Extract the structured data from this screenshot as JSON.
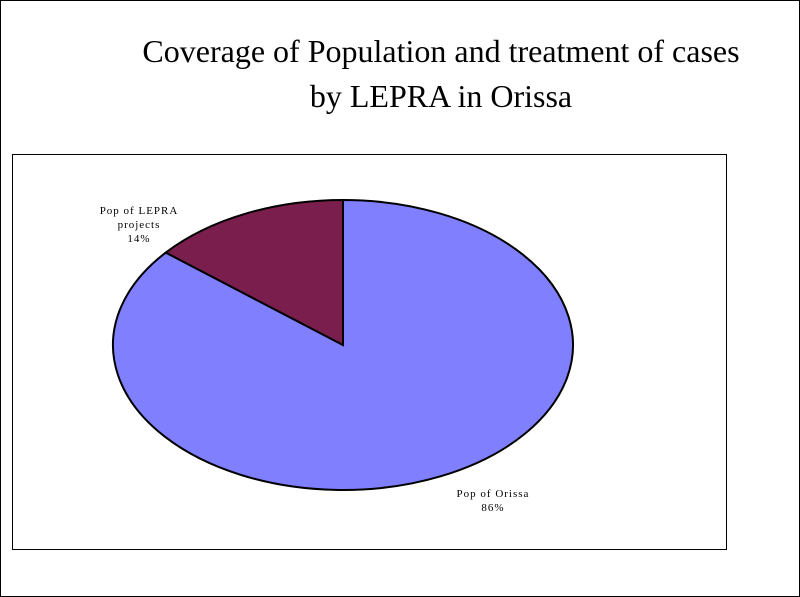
{
  "chart_data": {
    "type": "pie",
    "title": "Coverage of Population and treatment of cases by LEPRA  in Orissa",
    "slices": [
      {
        "label": "Pop of Orissa",
        "value": 86,
        "value_label": "86%",
        "color": "#8080ff"
      },
      {
        "label": "Pop of LEPRA projects",
        "value": 14,
        "value_label": "14%",
        "color": "#7a1f4d"
      }
    ],
    "legend": "none"
  }
}
